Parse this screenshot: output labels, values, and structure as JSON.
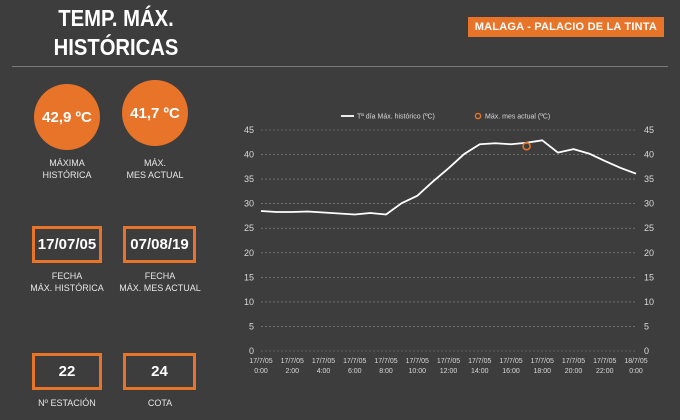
{
  "header": {
    "title_line1": "TEMP. MÁX.",
    "title_line2": "HISTÓRICAS",
    "location": "MALAGA - PALACIO DE LA TINTA"
  },
  "stats": {
    "max_historic_value": "42,9 ºC",
    "max_historic_label": "MÁXIMA\nHISTÓRICA",
    "max_month_value": "41,7 ºC",
    "max_month_label": "MÁX.\nMES ACTUAL",
    "date_historic_value": "17/07/05",
    "date_historic_label": "FECHA\nMÁX. HISTÓRICA",
    "date_month_value": "07/08/19",
    "date_month_label": "FECHA\nMÁX. MES ACTUAL",
    "station_value": "22",
    "station_label": "Nº ESTACIÓN",
    "elevation_value": "24",
    "elevation_label": "COTA"
  },
  "colors": {
    "accent": "#e8742a",
    "background": "#3d3d3d",
    "line": "#ffffff",
    "grid": "#8a8a8a"
  },
  "chart_data": {
    "type": "line",
    "legend": [
      "Tª día Máx. histórico (ºC)",
      "Máx. mes actual (ºC)"
    ],
    "legend_position": "top",
    "ylim": [
      0,
      45
    ],
    "yticks": [
      0,
      5,
      10,
      15,
      20,
      25,
      30,
      35,
      40,
      45
    ],
    "xlim": [
      0,
      24
    ],
    "x_tick_labels": [
      {
        "x": 0,
        "date": "17/7/05",
        "time": "0:00"
      },
      {
        "x": 2,
        "date": "17/7/05",
        "time": "2:00"
      },
      {
        "x": 4,
        "date": "17/7/05",
        "time": "4:00"
      },
      {
        "x": 6,
        "date": "17/7/05",
        "time": "6:00"
      },
      {
        "x": 8,
        "date": "17/7/05",
        "time": "8:00"
      },
      {
        "x": 10,
        "date": "17/7/05",
        "time": "10:00"
      },
      {
        "x": 12,
        "date": "17/7/05",
        "time": "12:00"
      },
      {
        "x": 14,
        "date": "17/7/05",
        "time": "14:00"
      },
      {
        "x": 16,
        "date": "17/7/05",
        "time": "16:00"
      },
      {
        "x": 18,
        "date": "17/7/05",
        "time": "18:00"
      },
      {
        "x": 20,
        "date": "17/7/05",
        "time": "20:00"
      },
      {
        "x": 22,
        "date": "17/7/05",
        "time": "22:00"
      },
      {
        "x": 24,
        "date": "18/7/05",
        "time": "0:00"
      }
    ],
    "series": [
      {
        "name": "Tª día Máx. histórico (ºC)",
        "x": [
          0,
          1,
          2,
          3,
          4,
          5,
          6,
          7,
          8,
          9,
          10,
          11,
          12,
          13,
          14,
          15,
          16,
          17,
          18,
          19,
          20,
          21,
          22,
          23,
          24
        ],
        "y": [
          28.5,
          28.3,
          28.3,
          28.4,
          28.2,
          28.0,
          27.8,
          28.1,
          27.8,
          30.1,
          31.6,
          34.5,
          37.2,
          40.1,
          42.1,
          42.3,
          42.1,
          42.4,
          42.9,
          40.4,
          41.1,
          40.2,
          38.7,
          37.3,
          36.1
        ]
      },
      {
        "name": "Máx. mes actual (ºC)",
        "points": [
          {
            "x": 17,
            "y": 41.7
          }
        ]
      }
    ]
  }
}
